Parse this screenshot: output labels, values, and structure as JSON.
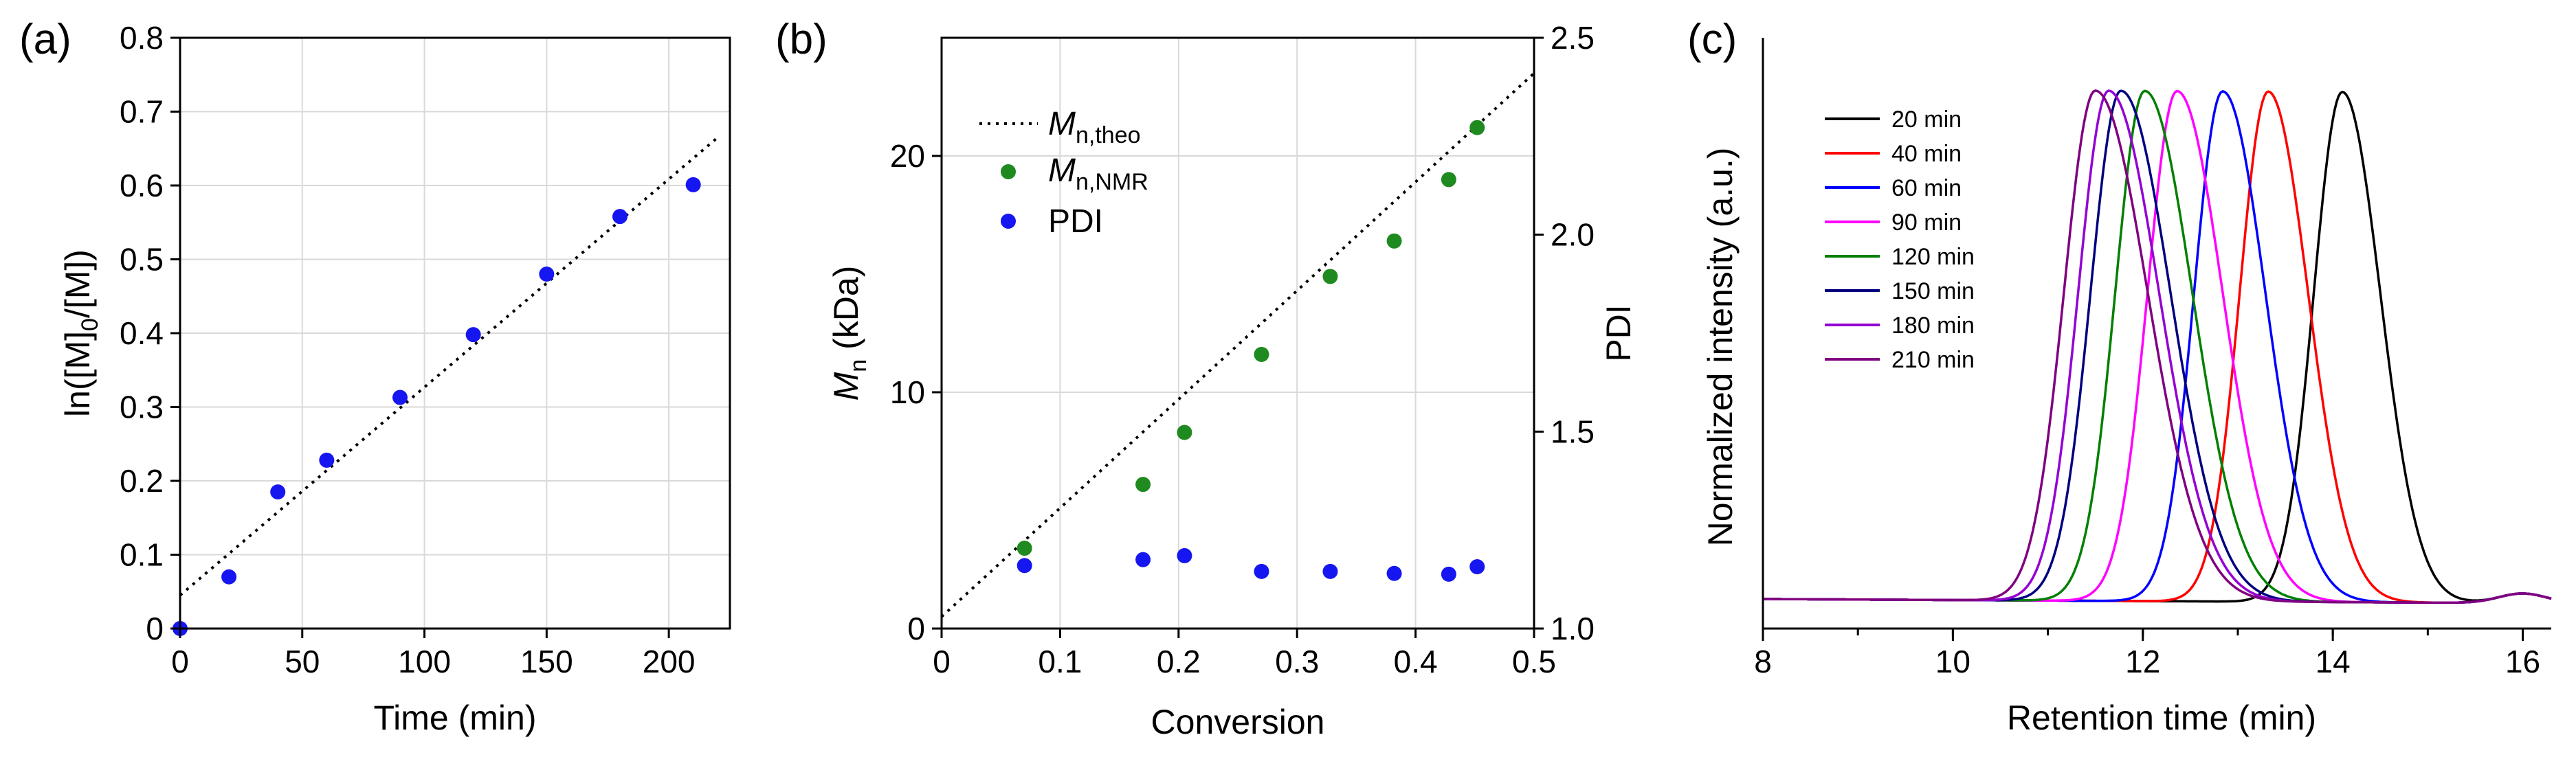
{
  "colors": {
    "scatter_blue": "#1616f0",
    "scatter_green": "#1f8a1f",
    "grid": "#d9d9d9"
  },
  "panels": {
    "a": {
      "label": "(a)"
    },
    "b": {
      "label": "(b)"
    },
    "c": {
      "label": "(c)"
    }
  },
  "chart_data": [
    {
      "id": "a",
      "type": "scatter",
      "xlabel": "Time (min)",
      "ylabel": {
        "pre": "ln([M]",
        "sub": "0",
        "post": "/[M])"
      },
      "xlim": [
        0,
        225
      ],
      "ylim": [
        0,
        0.8
      ],
      "xticks": [
        "0",
        "50",
        "100",
        "150",
        "200"
      ],
      "yticks": [
        "0",
        "0.1",
        "0.2",
        "0.3",
        "0.4",
        "0.5",
        "0.6",
        "0.7",
        "0.8"
      ],
      "grid": true,
      "series": [
        {
          "style": "points",
          "color": "#1616f0",
          "x": [
            0,
            20,
            40,
            60,
            90,
            120,
            150,
            180,
            210
          ],
          "y": [
            0.0,
            0.07,
            0.185,
            0.228,
            0.313,
            0.398,
            0.48,
            0.558,
            0.601
          ]
        },
        {
          "style": "dotted-line",
          "color": "#000000",
          "x": [
            0,
            220
          ],
          "y": [
            0.045,
            0.665
          ]
        }
      ]
    },
    {
      "id": "b",
      "type": "scatter",
      "xlabel": "Conversion",
      "ylabel_left": {
        "pre": "M",
        "sub": "n",
        "post": " (kDa)"
      },
      "ylabel_right": "PDI",
      "xlim": [
        0,
        0.5
      ],
      "ylim_left": [
        0,
        25
      ],
      "ylim_right": [
        1.0,
        2.5
      ],
      "xticks": [
        "0",
        "0.1",
        "0.2",
        "0.3",
        "0.4",
        "0.5"
      ],
      "yticks_left": [
        "0",
        "10",
        "20"
      ],
      "yticks_right": [
        "1.0",
        "1.5",
        "2.0",
        "2.5"
      ],
      "grid": true,
      "legend": [
        {
          "marker": "dotted-line",
          "pre": "M",
          "sub": "n,theo"
        },
        {
          "marker": "green-dot",
          "pre": "M",
          "sub": "n,NMR"
        },
        {
          "marker": "blue-dot",
          "text": "PDI"
        }
      ],
      "series": [
        {
          "name": "Mn,theo",
          "style": "dotted-line",
          "color": "#000000",
          "axis": "left",
          "x": [
            0,
            0.5
          ],
          "y": [
            0.5,
            23.5
          ]
        },
        {
          "name": "Mn,NMR",
          "style": "points",
          "color": "#1f8a1f",
          "axis": "left",
          "x": [
            0.07,
            0.17,
            0.205,
            0.27,
            0.328,
            0.382,
            0.428,
            0.452
          ],
          "y": [
            3.4,
            6.1,
            8.3,
            11.6,
            14.9,
            16.4,
            19.0,
            21.2
          ]
        },
        {
          "name": "PDI",
          "style": "points",
          "color": "#1616f0",
          "axis": "right",
          "x": [
            0.07,
            0.17,
            0.205,
            0.27,
            0.328,
            0.382,
            0.428,
            0.452
          ],
          "y": [
            1.16,
            1.175,
            1.185,
            1.145,
            1.145,
            1.14,
            1.138,
            1.157
          ]
        }
      ]
    },
    {
      "id": "c",
      "type": "line",
      "xlabel": "Retention time (min)",
      "ylabel": "Normalized intensity (a.u.)",
      "xlim": [
        8,
        16.3
      ],
      "ylim": [
        0,
        1.1
      ],
      "xticks": [
        "8",
        "10",
        "12",
        "14",
        "16"
      ],
      "grid": false,
      "legend_position": "top-left",
      "series": [
        {
          "name": "20 min",
          "color": "#000000",
          "peak": 14.1,
          "sigma_left": 0.3,
          "sigma_right": 0.4
        },
        {
          "name": "40 min",
          "color": "#ff0000",
          "peak": 13.32,
          "sigma_left": 0.3,
          "sigma_right": 0.42
        },
        {
          "name": "60 min",
          "color": "#0000ff",
          "peak": 12.84,
          "sigma_left": 0.3,
          "sigma_right": 0.45
        },
        {
          "name": "90 min",
          "color": "#ff00ff",
          "peak": 12.36,
          "sigma_left": 0.31,
          "sigma_right": 0.48
        },
        {
          "name": "120 min",
          "color": "#008000",
          "peak": 12.02,
          "sigma_left": 0.31,
          "sigma_right": 0.5
        },
        {
          "name": "150 min",
          "color": "#000080",
          "peak": 11.77,
          "sigma_left": 0.32,
          "sigma_right": 0.52
        },
        {
          "name": "180 min",
          "color": "#9400d3",
          "peak": 11.64,
          "sigma_left": 0.32,
          "sigma_right": 0.53
        },
        {
          "name": "210 min",
          "color": "#800080",
          "peak": 11.5,
          "sigma_left": 0.33,
          "sigma_right": 0.55
        }
      ]
    }
  ]
}
